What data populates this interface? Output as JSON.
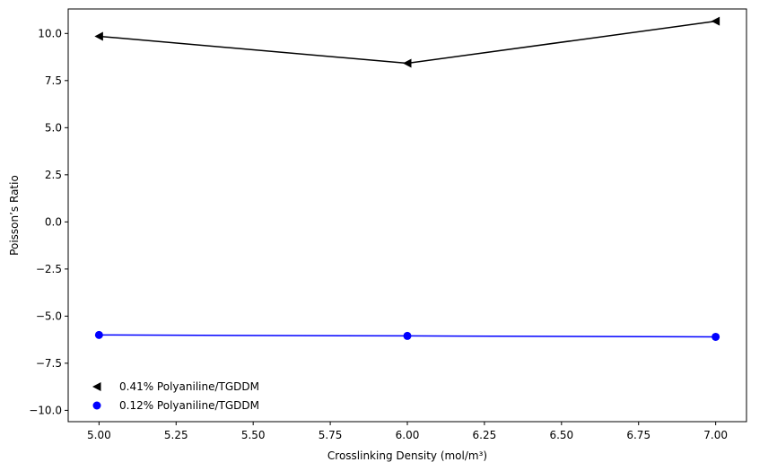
{
  "chart_data": {
    "type": "line",
    "title": "",
    "xlabel": "Crosslinking Density (mol/m³)",
    "ylabel": "Poisson’s Ratio",
    "xlim": [
      4.9,
      7.1
    ],
    "ylim": [
      -10.6,
      11.3
    ],
    "x": [
      5.0,
      6.0,
      7.0
    ],
    "xticks": [
      5.0,
      5.25,
      5.5,
      5.75,
      6.0,
      6.25,
      6.5,
      6.75,
      7.0
    ],
    "xtick_labels": [
      "5.00",
      "5.25",
      "5.50",
      "5.75",
      "6.00",
      "6.25",
      "6.50",
      "6.75",
      "7.00"
    ],
    "yticks": [
      -10.0,
      -7.5,
      -5.0,
      -2.5,
      0.0,
      2.5,
      5.0,
      7.5,
      10.0
    ],
    "ytick_labels": [
      "−10.0",
      "−7.5",
      "−5.0",
      "−2.5",
      "0.0",
      "2.5",
      "5.0",
      "7.5",
      "10.0"
    ],
    "grid": false,
    "legend_position": "lower-left",
    "series": [
      {
        "name": "0.41% Polyaniline/TGDDM",
        "values": [
          9.85,
          8.42,
          10.65
        ],
        "color": "#000000",
        "marker": "triangle-left"
      },
      {
        "name": "0.12% Polyaniline/TGDDM",
        "values": [
          -6.0,
          -6.05,
          -6.1
        ],
        "color": "#0000ff",
        "marker": "circle"
      }
    ]
  }
}
